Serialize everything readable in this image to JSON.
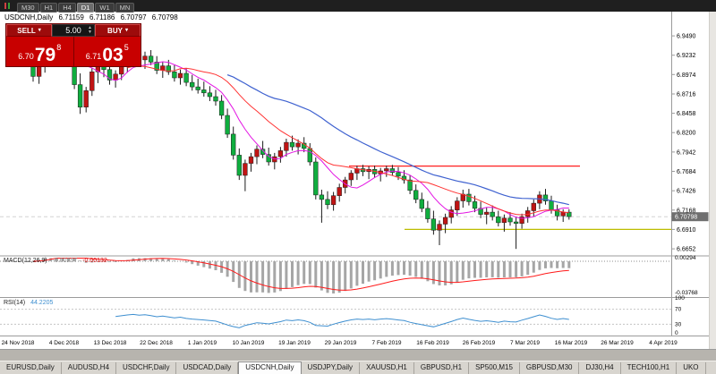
{
  "toolbar": {
    "periods": [
      {
        "label": "M30",
        "active": false
      },
      {
        "label": "H1",
        "active": false
      },
      {
        "label": "H4",
        "active": false
      },
      {
        "label": "D1",
        "active": true
      },
      {
        "label": "W1",
        "active": false
      },
      {
        "label": "MN",
        "active": false
      }
    ]
  },
  "chart_header": {
    "symbol": "USDCNH,Daily",
    "open": "6.71159",
    "high": "6.71186",
    "low": "6.70797",
    "close": "6.70798"
  },
  "trade_panel": {
    "sell_label": "SELL",
    "buy_label": "BUY",
    "volume": "5.00",
    "sell_price": {
      "prefix": "6.70",
      "big": "79",
      "sup": "8"
    },
    "buy_price": {
      "prefix": "6.71",
      "big": "03",
      "sup": "5"
    }
  },
  "indicators": {
    "macd": {
      "label": "MACD(12,26,9)",
      "value_main": "-0.00297",
      "value_signal": "-0.00132",
      "axis_top": "0.00294",
      "axis_bottom": "-0.03768"
    },
    "rsi": {
      "label": "RSI(14)",
      "value": "44.2205",
      "levels": [
        100,
        70,
        30,
        0
      ]
    }
  },
  "price_axis": {
    "ticks": [
      "6.9490",
      "6.9232",
      "6.8974",
      "6.8716",
      "6.8458",
      "6.8200",
      "6.7942",
      "6.7684",
      "6.7426",
      "6.7168",
      "6.6910",
      "6.6652"
    ],
    "current": "6.70798"
  },
  "date_axis": [
    "24 Nov 2018",
    "4 Dec 2018",
    "13 Dec 2018",
    "22 Dec 2018",
    "1 Jan 2019",
    "10 Jan 2019",
    "19 Jan 2019",
    "29 Jan 2019",
    "7 Feb 2019",
    "16 Feb 2019",
    "26 Feb 2019",
    "7 Mar 2019",
    "16 Mar 2019",
    "26 Mar 2019",
    "4 Apr 2019"
  ],
  "tabs": [
    {
      "label": "EURUSD,Daily",
      "active": false
    },
    {
      "label": "AUDUSD,H4",
      "active": false
    },
    {
      "label": "USDCHF,Daily",
      "active": false
    },
    {
      "label": "USDCAD,Daily",
      "active": false
    },
    {
      "label": "USDCNH,Daily",
      "active": true
    },
    {
      "label": "USDJPY,Daily",
      "active": false
    },
    {
      "label": "XAUUSD,H1",
      "active": false
    },
    {
      "label": "GBPUSD,H1",
      "active": false
    },
    {
      "label": "SP500,M15",
      "active": false
    },
    {
      "label": "GBPUSD,M30",
      "active": false
    },
    {
      "label": "DJ30,H4",
      "active": false
    },
    {
      "label": "TECH100,H1",
      "active": false
    },
    {
      "label": "UKO",
      "active": false
    }
  ],
  "chart_data": {
    "type": "candlestick",
    "symbol": "USDCNH",
    "timeframe": "Daily",
    "ylim": [
      6.657,
      6.981
    ],
    "red_hline": 6.7755,
    "yellow_hline": 6.691,
    "current_price": 6.70798,
    "ma_fast_period": 8,
    "ma_mid_period": 17,
    "ma_slow_period": 34,
    "colors": {
      "bull": "#c01414",
      "bear": "#0fae3e",
      "ma_fast": "#e316e3",
      "ma_mid": "#ff3333",
      "ma_slow": "#3f62d0",
      "macd_hist": "#a6a6a6",
      "macd_signal": "#ff1a1a",
      "rsi": "#3e8fd0",
      "red_line": "#ff2020",
      "yellow_line": "#bcbc00"
    },
    "ohlc": [
      [
        6.93,
        6.947,
        6.888,
        6.895
      ],
      [
        6.895,
        6.917,
        6.885,
        6.912
      ],
      [
        6.912,
        6.93,
        6.9,
        6.926
      ],
      [
        6.926,
        6.951,
        6.916,
        6.946
      ],
      [
        6.946,
        6.953,
        6.928,
        6.934
      ],
      [
        6.934,
        6.946,
        6.92,
        6.941
      ],
      [
        6.941,
        6.948,
        6.908,
        6.913
      ],
      [
        6.913,
        6.921,
        6.878,
        6.884
      ],
      [
        6.884,
        6.899,
        6.845,
        6.854
      ],
      [
        6.854,
        6.881,
        6.847,
        6.876
      ],
      [
        6.876,
        6.906,
        6.869,
        6.901
      ],
      [
        6.901,
        6.916,
        6.886,
        6.911
      ],
      [
        6.911,
        6.921,
        6.894,
        6.904
      ],
      [
        6.904,
        6.913,
        6.884,
        6.89
      ],
      [
        6.89,
        6.903,
        6.88,
        6.898
      ],
      [
        6.898,
        6.912,
        6.89,
        6.908
      ],
      [
        6.908,
        6.923,
        6.9,
        6.918
      ],
      [
        6.918,
        6.93,
        6.908,
        6.925
      ],
      [
        6.925,
        6.933,
        6.912,
        6.917
      ],
      [
        6.917,
        6.928,
        6.905,
        6.922
      ],
      [
        6.922,
        6.93,
        6.91,
        6.914
      ],
      [
        6.914,
        6.922,
        6.898,
        6.903
      ],
      [
        6.903,
        6.914,
        6.893,
        6.909
      ],
      [
        6.909,
        6.917,
        6.897,
        6.901
      ],
      [
        6.901,
        6.91,
        6.888,
        6.893
      ],
      [
        6.893,
        6.904,
        6.884,
        6.899
      ],
      [
        6.899,
        6.906,
        6.882,
        6.887
      ],
      [
        6.887,
        6.897,
        6.876,
        6.881
      ],
      [
        6.881,
        6.892,
        6.872,
        6.877
      ],
      [
        6.877,
        6.888,
        6.868,
        6.873
      ],
      [
        6.873,
        6.882,
        6.862,
        6.868
      ],
      [
        6.868,
        6.877,
        6.856,
        6.862
      ],
      [
        6.862,
        6.87,
        6.838,
        6.843
      ],
      [
        6.843,
        6.852,
        6.813,
        6.818
      ],
      [
        6.818,
        6.828,
        6.784,
        6.79
      ],
      [
        6.79,
        6.799,
        6.757,
        6.763
      ],
      [
        6.763,
        6.784,
        6.742,
        6.779
      ],
      [
        6.779,
        6.793,
        6.768,
        6.788
      ],
      [
        6.788,
        6.803,
        6.778,
        6.798
      ],
      [
        6.798,
        6.809,
        6.786,
        6.791
      ],
      [
        6.791,
        6.8,
        6.776,
        6.781
      ],
      [
        6.781,
        6.793,
        6.771,
        6.788
      ],
      [
        6.788,
        6.801,
        6.78,
        6.796
      ],
      [
        6.796,
        6.812,
        6.788,
        6.807
      ],
      [
        6.807,
        6.816,
        6.796,
        6.801
      ],
      [
        6.801,
        6.811,
        6.791,
        6.806
      ],
      [
        6.806,
        6.814,
        6.794,
        6.799
      ],
      [
        6.799,
        6.806,
        6.776,
        6.781
      ],
      [
        6.781,
        6.787,
        6.731,
        6.737
      ],
      [
        6.737,
        6.744,
        6.7,
        6.731
      ],
      [
        6.731,
        6.742,
        6.718,
        6.724
      ],
      [
        6.724,
        6.741,
        6.716,
        6.736
      ],
      [
        6.736,
        6.752,
        6.728,
        6.747
      ],
      [
        6.747,
        6.761,
        6.739,
        6.757
      ],
      [
        6.757,
        6.77,
        6.749,
        6.766
      ],
      [
        6.766,
        6.776,
        6.757,
        6.772
      ],
      [
        6.772,
        6.777,
        6.762,
        6.768
      ],
      [
        6.768,
        6.775,
        6.758,
        6.771
      ],
      [
        6.771,
        6.776,
        6.76,
        6.765
      ],
      [
        6.765,
        6.773,
        6.755,
        6.769
      ],
      [
        6.769,
        6.776,
        6.761,
        6.772
      ],
      [
        6.772,
        6.777,
        6.763,
        6.767
      ],
      [
        6.767,
        6.774,
        6.757,
        6.762
      ],
      [
        6.762,
        6.77,
        6.752,
        6.757
      ],
      [
        6.757,
        6.763,
        6.738,
        6.743
      ],
      [
        6.743,
        6.751,
        6.726,
        6.731
      ],
      [
        6.731,
        6.74,
        6.714,
        6.719
      ],
      [
        6.719,
        6.729,
        6.7,
        6.705
      ],
      [
        6.705,
        6.716,
        6.684,
        6.69
      ],
      [
        6.69,
        6.703,
        6.67,
        6.698
      ],
      [
        6.698,
        6.712,
        6.686,
        6.707
      ],
      [
        6.707,
        6.722,
        6.699,
        6.717
      ],
      [
        6.717,
        6.734,
        6.709,
        6.729
      ],
      [
        6.729,
        6.744,
        6.72,
        6.738
      ],
      [
        6.738,
        6.745,
        6.723,
        6.728
      ],
      [
        6.728,
        6.736,
        6.714,
        6.719
      ],
      [
        6.719,
        6.728,
        6.706,
        6.711
      ],
      [
        6.711,
        6.72,
        6.698,
        6.714
      ],
      [
        6.714,
        6.723,
        6.703,
        6.708
      ],
      [
        6.708,
        6.716,
        6.695,
        6.7
      ],
      [
        6.7,
        6.711,
        6.688,
        6.706
      ],
      [
        6.706,
        6.714,
        6.696,
        6.701
      ],
      [
        6.701,
        6.708,
        6.665,
        6.699
      ],
      [
        6.699,
        6.712,
        6.692,
        6.708
      ],
      [
        6.708,
        6.721,
        6.7,
        6.716
      ],
      [
        6.716,
        6.731,
        6.708,
        6.726
      ],
      [
        6.726,
        6.742,
        6.718,
        6.737
      ],
      [
        6.737,
        6.745,
        6.724,
        6.729
      ],
      [
        6.729,
        6.736,
        6.712,
        6.717
      ],
      [
        6.717,
        6.724,
        6.703,
        6.709
      ],
      [
        6.709,
        6.718,
        6.701,
        6.714
      ],
      [
        6.714,
        6.718,
        6.704,
        6.708
      ]
    ]
  }
}
